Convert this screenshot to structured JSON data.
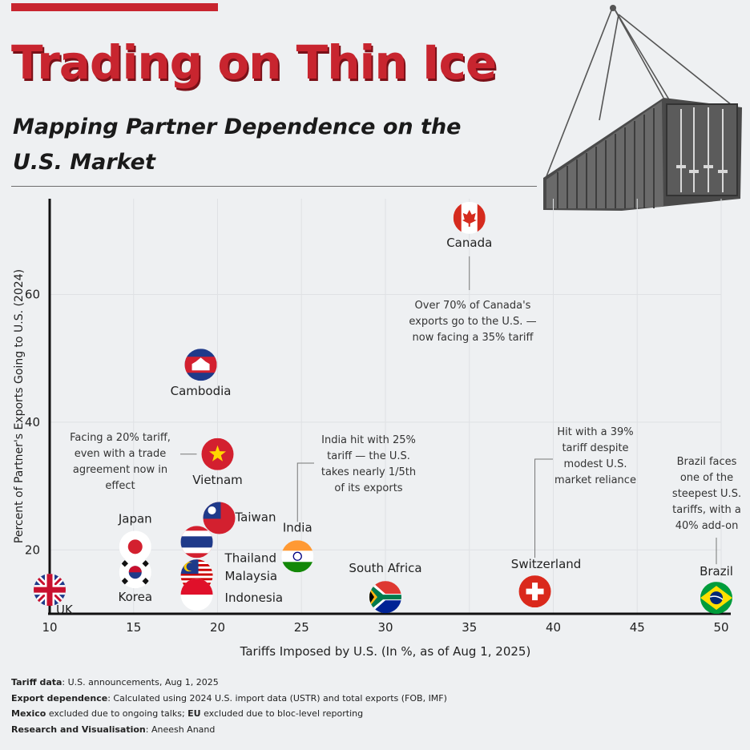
{
  "header": {
    "title": "Trading on Thin Ice",
    "subtitle_line1": "Mapping Partner Dependence on the",
    "subtitle_line2": "U.S. Market",
    "accent_color": "#c8252f"
  },
  "illustration": {
    "icon": "shipping-container-icon"
  },
  "chart_data": {
    "type": "scatter",
    "xlabel": "Tariffs Imposed by U.S. (In %, as of Aug 1, 2025)",
    "ylabel": "Percent of Partner's Exports Going to U.S. (2024)",
    "xlim": [
      10,
      50
    ],
    "ylim": [
      10,
      75
    ],
    "xticks": [
      10,
      15,
      20,
      25,
      30,
      35,
      40,
      45,
      50
    ],
    "yticks": [
      20,
      40,
      60
    ],
    "grid": true,
    "points": [
      {
        "name": "UK",
        "x": 10,
        "y": 14,
        "icon": "uk-flag-icon"
      },
      {
        "name": "Japan",
        "x": 15,
        "y": 20.5,
        "icon": "japan-flag-icon"
      },
      {
        "name": "Korea",
        "x": 15,
        "y": 16.5,
        "icon": "korea-flag-icon"
      },
      {
        "name": "Cambodia",
        "x": 19,
        "y": 49,
        "icon": "cambodia-flag-icon"
      },
      {
        "name": "Vietnam",
        "x": 20,
        "y": 35,
        "icon": "vietnam-flag-icon"
      },
      {
        "name": "Taiwan",
        "x": 20,
        "y": 25,
        "icon": "taiwan-flag-icon"
      },
      {
        "name": "Thailand",
        "x": 19,
        "y": 21,
        "icon": "thailand-flag-icon"
      },
      {
        "name": "Malaysia",
        "x": 19,
        "y": 16,
        "icon": "malaysia-flag-icon"
      },
      {
        "name": "Indonesia",
        "x": 19,
        "y": 13,
        "icon": "indonesia-flag-icon"
      },
      {
        "name": "India",
        "x": 25,
        "y": 19,
        "icon": "india-flag-icon"
      },
      {
        "name": "South Africa",
        "x": 30,
        "y": 13,
        "icon": "south-africa-flag-icon"
      },
      {
        "name": "Canada",
        "x": 35,
        "y": 72,
        "icon": "canada-flag-icon"
      },
      {
        "name": "Switzerland",
        "x": 39,
        "y": 14,
        "icon": "switzerland-flag-icon"
      },
      {
        "name": "Brazil",
        "x": 50,
        "y": 13,
        "icon": "brazil-flag-icon"
      }
    ],
    "annotations": [
      {
        "lines": [
          "Over 70% of Canada's",
          "exports go to the U.S. —",
          "now facing a 35% tariff"
        ]
      },
      {
        "lines": [
          "Facing a 20% tariff,",
          "even with a trade",
          "agreement now in",
          "effect"
        ]
      },
      {
        "lines": [
          "India hit with 25%",
          "tariff — the U.S.",
          "takes nearly 1/5th",
          "of its exports"
        ]
      },
      {
        "lines": [
          "Hit with a 39%",
          "tariff despite",
          "modest U.S.",
          "market reliance"
        ]
      },
      {
        "lines": [
          "Brazil faces",
          "one of the",
          "steepest U.S.",
          "tariffs, with a",
          "40% add-on"
        ]
      }
    ]
  },
  "footer": {
    "tariff_label": "Tariff data",
    "tariff_text": ": U.S. announcements, Aug 1, 2025",
    "export_label": "Export dependence",
    "export_text": ": Calculated using 2024 U.S. import data (USTR) and total exports (FOB, IMF)",
    "mexico_label": "Mexico",
    "mexico_text": " excluded due to ongoing talks; ",
    "eu_label": "EU",
    "eu_text": " excluded due to bloc-level reporting",
    "research_label": "Research and Visualisation",
    "research_text": ": Aneesh Anand"
  }
}
